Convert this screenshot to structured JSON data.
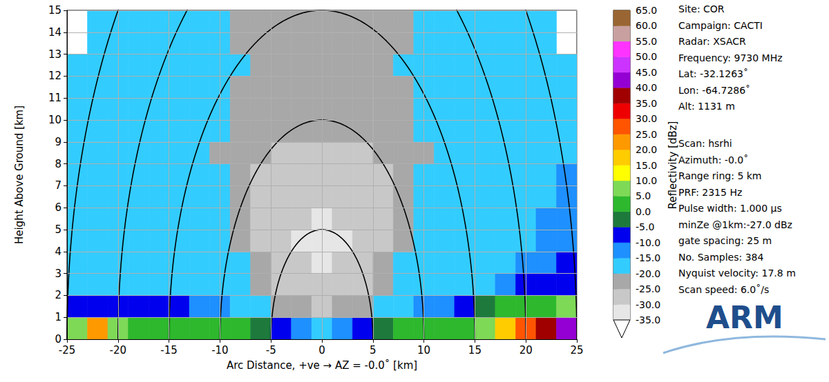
{
  "chart_data": {
    "type": "heatmap",
    "x_label": "Arc Distance, +ve → AZ = -0.0˚ [km]",
    "y_label": "Height Above Ground [km]",
    "xlim": [
      -25,
      25
    ],
    "xticks": [
      -25,
      -20,
      -15,
      -10,
      -5,
      0,
      5,
      10,
      15,
      20,
      25
    ],
    "ylim": [
      0,
      15
    ],
    "yticks": [
      0,
      1,
      2,
      3,
      4,
      5,
      6,
      7,
      8,
      9,
      10,
      11,
      12,
      13,
      14,
      15
    ],
    "grid": true,
    "x_bins": [
      -25,
      -23,
      -21,
      -19,
      -17,
      -15,
      -13,
      -11,
      -9,
      -7,
      -5,
      -3,
      -1,
      1,
      3,
      5,
      7,
      9,
      11,
      13,
      15,
      17,
      19,
      21,
      23,
      25
    ],
    "y_bins": [
      0,
      1,
      2,
      3,
      4,
      5,
      6,
      7,
      8,
      9,
      10,
      11,
      12,
      13,
      14,
      15
    ],
    "values": [
      [
        8,
        22,
        6,
        4,
        3,
        2,
        2,
        2,
        0,
        -3,
        -8,
        -15,
        -20,
        -15,
        -8,
        -3,
        0,
        2,
        3,
        4,
        6,
        18,
        28,
        35,
        40
      ],
      [
        -8,
        -8,
        -8,
        -8,
        -9,
        -10,
        -12,
        -14,
        -17,
        -20,
        -22,
        -25,
        -27,
        -25,
        -22,
        -20,
        -17,
        -14,
        -12,
        -10,
        -5,
        0,
        2,
        3,
        5
      ],
      [
        -17,
        -17,
        -17,
        -17,
        -17,
        -17,
        -17,
        -17,
        -18,
        -22,
        -26,
        -28,
        -30,
        -28,
        -26,
        -22,
        -18,
        -17,
        -17,
        -17,
        -17,
        -14,
        -10,
        -8,
        -6
      ],
      [
        -17,
        -17,
        -17,
        -17,
        -17,
        -17,
        -17,
        -17,
        -19,
        -24,
        -28,
        -30,
        -32,
        -30,
        -28,
        -24,
        -19,
        -17,
        -17,
        -17,
        -17,
        -17,
        -15,
        -12,
        -10
      ],
      [
        -17,
        -17,
        -17,
        -17,
        -17,
        -17,
        -17,
        -18,
        -21,
        -26,
        -29,
        -31,
        -32,
        -31,
        -29,
        -26,
        -21,
        -18,
        -17,
        -17,
        -17,
        -17,
        -16,
        -14,
        -12
      ],
      [
        -17,
        -17,
        -17,
        -17,
        -17,
        -17,
        -17,
        -18,
        -22,
        -26,
        -28,
        -30,
        -31,
        -30,
        -28,
        -26,
        -22,
        -18,
        -17,
        -17,
        -17,
        -17,
        -17,
        -15,
        -13
      ],
      [
        -17,
        -17,
        -17,
        -17,
        -17,
        -17,
        -17,
        -19,
        -23,
        -26,
        -27,
        -28,
        -28,
        -28,
        -27,
        -26,
        -23,
        -19,
        -17,
        -17,
        -17,
        -17,
        -17,
        -16,
        -14
      ],
      [
        -17,
        -17,
        -17,
        -17,
        -17,
        -17,
        -18,
        -20,
        -24,
        -26,
        -27,
        -27,
        -27,
        -27,
        -27,
        -26,
        -24,
        -20,
        -18,
        -17,
        -17,
        -17,
        -17,
        -17,
        -15
      ],
      [
        -17,
        -17,
        -17,
        -17,
        -17,
        -17,
        -18,
        -21,
        -24,
        -25,
        -26,
        -26,
        -26,
        -26,
        -26,
        -25,
        -24,
        -21,
        -18,
        -17,
        -17,
        -17,
        -17,
        -17,
        -16
      ],
      [
        -17,
        -17,
        -17,
        -17,
        -17,
        -17,
        -18,
        -20,
        -23,
        -24,
        -25,
        -25,
        -25,
        -25,
        -25,
        -24,
        -23,
        -20,
        -18,
        -17,
        -17,
        -17,
        -17,
        -17,
        -17
      ],
      [
        -17,
        -17,
        -17,
        -17,
        -17,
        -17,
        -17,
        -19,
        -22,
        -23,
        -24,
        -24,
        -24,
        -24,
        -24,
        -23,
        -22,
        -19,
        -17,
        -17,
        -17,
        -17,
        -17,
        -17,
        -17
      ],
      [
        -17,
        -17,
        -17,
        -17,
        -17,
        -17,
        -17,
        -18,
        -21,
        -23,
        -23,
        -24,
        -24,
        -24,
        -23,
        -23,
        -21,
        -18,
        -17,
        -17,
        -17,
        -17,
        -17,
        -17,
        -17
      ],
      [
        -17,
        -17,
        -17,
        -17,
        -17,
        -17,
        -17,
        -18,
        -20,
        -22,
        -23,
        -23,
        -23,
        -23,
        -23,
        -22,
        -20,
        -18,
        -17,
        -17,
        -17,
        -17,
        -17,
        -17,
        -17
      ],
      [
        null,
        -17,
        -17,
        -17,
        -17,
        -17,
        -17,
        -19,
        -21,
        -22,
        -22,
        -22,
        -22,
        -22,
        -22,
        -22,
        -21,
        -19,
        -17,
        -17,
        -17,
        -17,
        -17,
        -17,
        null
      ],
      [
        null,
        -17,
        -17,
        -17,
        -17,
        -17,
        -17,
        -19,
        -21,
        -22,
        -22,
        -22,
        -22,
        -22,
        -22,
        -22,
        -21,
        -19,
        -17,
        -17,
        -17,
        -17,
        -17,
        -17,
        null
      ]
    ],
    "range_rings": {
      "values": [
        5,
        10,
        15,
        20,
        25
      ],
      "color": "#000000"
    },
    "colorbar": {
      "label": "Reflectivity [dBz]",
      "range": [
        -35,
        65
      ],
      "levels": [
        -35,
        -30,
        -25,
        -20,
        -15,
        -10,
        -5,
        0,
        5,
        10,
        15,
        20,
        25,
        30,
        35,
        40,
        45,
        50,
        55,
        60,
        65
      ],
      "colors": [
        "#e6e6e6",
        "#c8c8c8",
        "#a8a8a8",
        "#33ccff",
        "#1e90ff",
        "#0000ee",
        "#1e7a3c",
        "#2eb82e",
        "#7ed957",
        "#ffff00",
        "#ffcc00",
        "#ff9900",
        "#ff5500",
        "#ee0000",
        "#a00000",
        "#9400d3",
        "#cc33ff",
        "#ff33ff",
        "#c8a0a0",
        "#996633"
      ],
      "ticks": [
        {
          "value": -35,
          "label": "-35.0"
        },
        {
          "value": -30,
          "label": "-30.0"
        },
        {
          "value": -25,
          "label": "-25.0"
        },
        {
          "value": -20,
          "label": "-20.0"
        },
        {
          "value": -15,
          "label": "-15.0"
        },
        {
          "value": -10,
          "label": "-10.0"
        },
        {
          "value": -5,
          "label": "-5.0"
        },
        {
          "value": 0,
          "label": "0.0"
        },
        {
          "value": 5,
          "label": "5.0"
        },
        {
          "value": 10,
          "label": "10.0"
        },
        {
          "value": 15,
          "label": "15.0"
        },
        {
          "value": 20,
          "label": "20.0"
        },
        {
          "value": 25,
          "label": "25.0"
        },
        {
          "value": 30,
          "label": "30.0"
        },
        {
          "value": 35,
          "label": "35.0"
        },
        {
          "value": 40,
          "label": "40.0"
        },
        {
          "value": 45,
          "label": "45.0"
        },
        {
          "value": 50,
          "label": "50.0"
        },
        {
          "value": 55,
          "label": "55.0"
        },
        {
          "value": 60,
          "label": "60.0"
        },
        {
          "value": 65,
          "label": "65.0"
        }
      ]
    },
    "annotations": [
      [
        "Site: COR",
        "Campaign: CACTI",
        "Radar: XSACR",
        "Frequency: 9730 MHz",
        "Lat: -32.1263˚",
        "Lon: -64.7286˚",
        "Alt: 1131 m"
      ],
      [
        "Scan: hsrhi",
        "Azimuth: -0.0˚",
        "Range ring: 5 km",
        "PRF: 2315 Hz",
        "Pulse width: 1.000 μs",
        "minZe @1km:-27.0 dBz",
        "gate spacing: 25 m",
        "No. Samples: 384",
        "Nyquist velocity: 17.8 m",
        "Scan speed: 6.0˚/s"
      ]
    ],
    "logo": "ARM"
  }
}
